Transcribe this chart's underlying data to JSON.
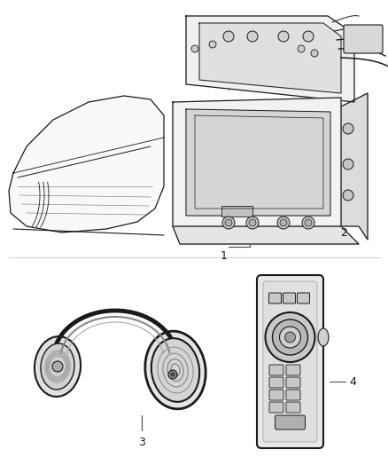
{
  "background_color": "#ffffff",
  "fig_width": 4.38,
  "fig_height": 5.33,
  "dpi": 100,
  "line_color": "#1a1a1a",
  "line_color_light": "#555555",
  "line_color_cable": "#333333"
}
